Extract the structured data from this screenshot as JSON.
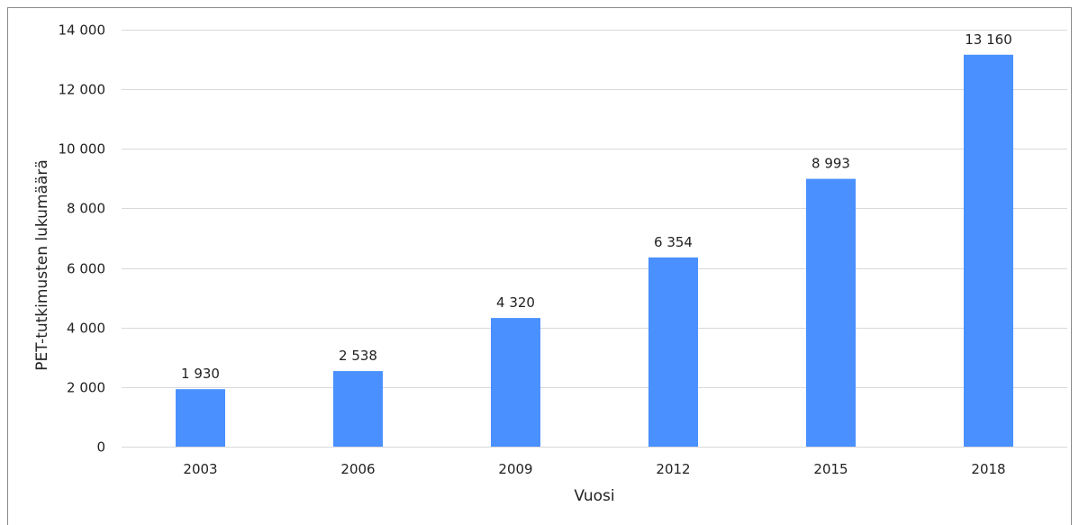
{
  "chart_data": {
    "type": "bar",
    "categories": [
      "2003",
      "2006",
      "2009",
      "2012",
      "2015",
      "2018"
    ],
    "values": [
      1930,
      2538,
      4320,
      6354,
      8993,
      13160
    ],
    "data_labels": [
      "1 930",
      "2 538",
      "4 320",
      "6 354",
      "8 993",
      "13 160"
    ],
    "title": "",
    "xlabel": "Vuosi",
    "ylabel": "PET-tutkimusten lukumäärä",
    "ylim": [
      0,
      14000
    ],
    "yticks": [
      0,
      2000,
      4000,
      6000,
      8000,
      10000,
      12000,
      14000
    ],
    "ytick_labels": [
      "0",
      "2 000",
      "4 000",
      "6 000",
      "8 000",
      "10 000",
      "12 000",
      "14 000"
    ],
    "grid": true,
    "legend": "none",
    "bar_color": "#4a90ff"
  }
}
